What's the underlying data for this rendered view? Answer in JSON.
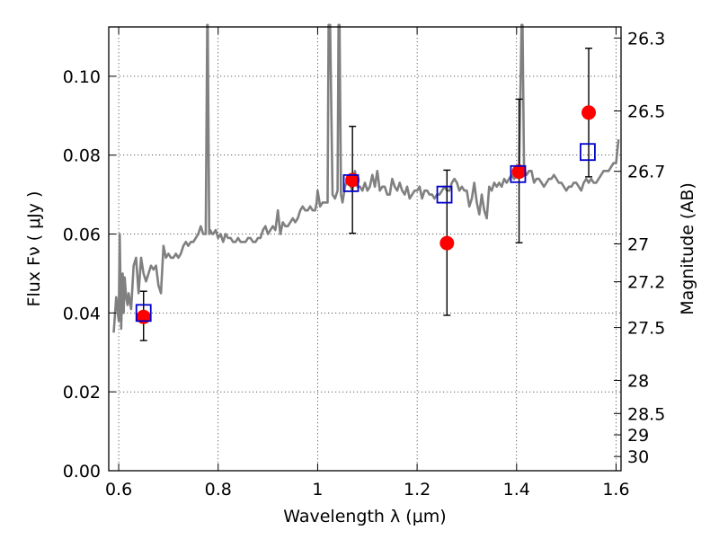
{
  "chart_data": {
    "type": "scatter",
    "title": "",
    "xlabel": "Wavelength  λ (μm)",
    "ylabel": "Flux  Fν  ( μJy )",
    "ylabel_right": "Magnitude (AB)",
    "xlim": [
      0.58,
      1.61
    ],
    "ylim": [
      0.0,
      0.1125
    ],
    "grid": true,
    "x_ticks": [
      0.6,
      0.8,
      1.0,
      1.2,
      1.4,
      1.6
    ],
    "x_tick_labels": [
      "0.6",
      "0.8",
      "1",
      "1.2",
      "1.4",
      "1.6"
    ],
    "y_ticks": [
      0.0,
      0.02,
      0.04,
      0.06,
      0.08,
      0.1
    ],
    "y_tick_labels": [
      "0.00",
      "0.02",
      "0.04",
      "0.06",
      "0.08",
      "0.10"
    ],
    "right_ticks": [
      {
        "label": "26.3",
        "flux": 0.1097
      },
      {
        "label": "26.5",
        "flux": 0.0912
      },
      {
        "label": "26.7",
        "flux": 0.0759
      },
      {
        "label": "27",
        "flux": 0.0575
      },
      {
        "label": "27.2",
        "flux": 0.0479
      },
      {
        "label": "27.5",
        "flux": 0.0363
      },
      {
        "label": "28",
        "flux": 0.0229
      },
      {
        "label": "28.5",
        "flux": 0.0145
      },
      {
        "label": "29",
        "flux": 0.0091
      },
      {
        "label": "30",
        "flux": 0.0036
      }
    ],
    "series": [
      {
        "kind": "line",
        "color": "#808080",
        "x": [
          0.59,
          0.595,
          0.6,
          0.602,
          0.605,
          0.608,
          0.61,
          0.612,
          0.615,
          0.618,
          0.62,
          0.625,
          0.63,
          0.635,
          0.64,
          0.645,
          0.65,
          0.655,
          0.66,
          0.665,
          0.67,
          0.675,
          0.68,
          0.685,
          0.69,
          0.695,
          0.7,
          0.705,
          0.71,
          0.715,
          0.72,
          0.725,
          0.73,
          0.735,
          0.74,
          0.745,
          0.75,
          0.755,
          0.76,
          0.765,
          0.77,
          0.775,
          0.778,
          0.779,
          0.782,
          0.784,
          0.788,
          0.79,
          0.795,
          0.8,
          0.805,
          0.81,
          0.815,
          0.82,
          0.825,
          0.83,
          0.835,
          0.84,
          0.845,
          0.85,
          0.855,
          0.86,
          0.865,
          0.87,
          0.875,
          0.88,
          0.885,
          0.89,
          0.895,
          0.9,
          0.905,
          0.91,
          0.915,
          0.92,
          0.925,
          0.93,
          0.935,
          0.94,
          0.945,
          0.95,
          0.955,
          0.96,
          0.965,
          0.97,
          0.975,
          0.98,
          0.985,
          0.99,
          0.995,
          0.998,
          1.0,
          1.005,
          1.01,
          1.015,
          1.02,
          1.022,
          1.025,
          1.03,
          1.035,
          1.04,
          1.042,
          1.044,
          1.047,
          1.05,
          1.055,
          1.06,
          1.07,
          1.075,
          1.08,
          1.085,
          1.09,
          1.095,
          1.1,
          1.105,
          1.11,
          1.115,
          1.12,
          1.125,
          1.13,
          1.135,
          1.14,
          1.145,
          1.15,
          1.155,
          1.16,
          1.165,
          1.17,
          1.175,
          1.18,
          1.185,
          1.19,
          1.195,
          1.2,
          1.205,
          1.21,
          1.215,
          1.22,
          1.225,
          1.23,
          1.235,
          1.24,
          1.245,
          1.25,
          1.255,
          1.26,
          1.265,
          1.27,
          1.275,
          1.28,
          1.285,
          1.29,
          1.295,
          1.3,
          1.305,
          1.31,
          1.315,
          1.32,
          1.325,
          1.33,
          1.335,
          1.34,
          1.345,
          1.35,
          1.355,
          1.36,
          1.365,
          1.37,
          1.375,
          1.38,
          1.385,
          1.39,
          1.395,
          1.4,
          1.405,
          1.41,
          1.412,
          1.415,
          1.42,
          1.425,
          1.43,
          1.435,
          1.44,
          1.445,
          1.45,
          1.455,
          1.46,
          1.465,
          1.47,
          1.475,
          1.48,
          1.485,
          1.49,
          1.495,
          1.5,
          1.505,
          1.51,
          1.515,
          1.52,
          1.525,
          1.53,
          1.535,
          1.54,
          1.545,
          1.55,
          1.555,
          1.56,
          1.565,
          1.57,
          1.575,
          1.58,
          1.585,
          1.59,
          1.595,
          1.6,
          1.605
        ],
        "y": [
          0.035,
          0.044,
          0.038,
          0.06,
          0.036,
          0.05,
          0.04,
          0.049,
          0.044,
          0.042,
          0.045,
          0.041,
          0.052,
          0.054,
          0.045,
          0.054,
          0.05,
          0.048,
          0.05,
          0.052,
          0.051,
          0.052,
          0.047,
          0.045,
          0.057,
          0.054,
          0.055,
          0.054,
          0.054,
          0.055,
          0.054,
          0.055,
          0.057,
          0.058,
          0.057,
          0.058,
          0.058,
          0.059,
          0.06,
          0.062,
          0.06,
          0.06,
          0.113,
          0.113,
          0.06,
          0.061,
          0.06,
          0.06,
          0.061,
          0.059,
          0.06,
          0.058,
          0.06,
          0.059,
          0.059,
          0.058,
          0.058,
          0.059,
          0.058,
          0.058,
          0.058,
          0.059,
          0.059,
          0.058,
          0.058,
          0.059,
          0.059,
          0.061,
          0.062,
          0.06,
          0.061,
          0.062,
          0.061,
          0.066,
          0.06,
          0.063,
          0.062,
          0.062,
          0.063,
          0.064,
          0.063,
          0.064,
          0.066,
          0.067,
          0.066,
          0.066,
          0.067,
          0.066,
          0.066,
          0.068,
          0.071,
          0.067,
          0.068,
          0.068,
          0.068,
          0.113,
          0.113,
          0.07,
          0.069,
          0.071,
          0.113,
          0.113,
          0.07,
          0.068,
          0.072,
          0.074,
          0.071,
          0.076,
          0.072,
          0.072,
          0.071,
          0.073,
          0.071,
          0.072,
          0.075,
          0.072,
          0.076,
          0.071,
          0.072,
          0.072,
          0.07,
          0.07,
          0.074,
          0.072,
          0.071,
          0.073,
          0.071,
          0.07,
          0.072,
          0.069,
          0.07,
          0.071,
          0.071,
          0.072,
          0.069,
          0.071,
          0.071,
          0.07,
          0.07,
          0.069,
          0.07,
          0.07,
          0.071,
          0.072,
          0.071,
          0.071,
          0.073,
          0.074,
          0.073,
          0.071,
          0.072,
          0.071,
          0.071,
          0.067,
          0.069,
          0.073,
          0.068,
          0.065,
          0.07,
          0.066,
          0.064,
          0.072,
          0.071,
          0.073,
          0.072,
          0.073,
          0.072,
          0.074,
          0.073,
          0.074,
          0.075,
          0.074,
          0.075,
          0.076,
          0.113,
          0.113,
          0.076,
          0.075,
          0.076,
          0.076,
          0.073,
          0.074,
          0.074,
          0.073,
          0.072,
          0.073,
          0.074,
          0.074,
          0.075,
          0.074,
          0.073,
          0.073,
          0.072,
          0.071,
          0.072,
          0.072,
          0.073,
          0.073,
          0.072,
          0.071,
          0.073,
          0.074,
          0.073,
          0.074,
          0.073,
          0.073,
          0.074,
          0.075,
          0.076,
          0.076,
          0.076,
          0.077,
          0.078,
          0.078,
          0.084
        ]
      },
      {
        "kind": "errorbar-points",
        "marker": "filled-circle",
        "color": "#ff0000",
        "x": [
          0.65,
          1.07,
          1.26,
          1.405,
          1.545
        ],
        "y": [
          0.039,
          0.0737,
          0.0577,
          0.0758,
          0.0908
        ],
        "yerr_low": [
          0.033,
          0.0602,
          0.0394,
          0.0578,
          0.0745
        ],
        "yerr_high": [
          0.0455,
          0.0873,
          0.0762,
          0.0942,
          0.1071
        ]
      },
      {
        "kind": "points",
        "marker": "open-square",
        "color": "#0000cc",
        "x": [
          0.65,
          1.067,
          1.255,
          1.403,
          1.543
        ],
        "y": [
          0.04,
          0.0729,
          0.07,
          0.0752,
          0.0808
        ]
      }
    ]
  }
}
